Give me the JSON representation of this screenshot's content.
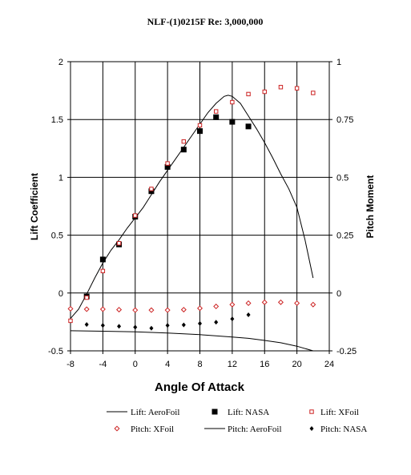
{
  "chart_data": {
    "type": "line",
    "title": "NLF-(1)0215F Re: 3,000,000",
    "xlabel": "Angle Of Attack",
    "ylabel_left": "Lift Coefficient",
    "ylabel_right": "Pitch Moment",
    "xlim": [
      -8,
      24
    ],
    "ylim_left": [
      -0.5,
      2
    ],
    "ylim_right": [
      -0.25,
      1
    ],
    "grid": true,
    "legend_position": "bottom",
    "x_ticks": [
      "-8",
      "-4",
      "0",
      "4",
      "8",
      "12",
      "16",
      "20",
      "24"
    ],
    "y_left_ticks": [
      "-0.5",
      "0",
      "0.5",
      "1",
      "1.5",
      "2"
    ],
    "y_right_ticks": [
      "-0.25",
      "0",
      "0.25",
      "0.5",
      "0.75",
      "1"
    ],
    "series": [
      {
        "name": "Lift: AeroFoil",
        "axis": "left",
        "style": "line",
        "color": "#000000",
        "x": [
          -8,
          -7,
          -6,
          -5,
          -4,
          -3,
          -2,
          -1,
          0,
          1,
          2,
          3,
          4,
          5,
          6,
          7,
          8,
          9,
          10,
          11,
          11.5,
          12,
          13,
          14,
          15,
          16,
          17,
          18,
          19,
          20,
          21,
          22
        ],
        "y": [
          -0.22,
          -0.14,
          -0.01,
          0.13,
          0.26,
          0.37,
          0.46,
          0.56,
          0.65,
          0.74,
          0.85,
          0.96,
          1.06,
          1.16,
          1.26,
          1.36,
          1.46,
          1.56,
          1.64,
          1.7,
          1.71,
          1.7,
          1.64,
          1.53,
          1.42,
          1.3,
          1.17,
          1.03,
          0.9,
          0.74,
          0.46,
          0.13
        ]
      },
      {
        "name": "Lift: NASA",
        "axis": "left",
        "style": "marker",
        "marker": "filled-square",
        "color": "#000000",
        "x": [
          -6,
          -4,
          -2,
          0,
          2,
          4,
          6,
          8,
          10,
          12,
          14
        ],
        "y": [
          -0.03,
          0.29,
          0.42,
          0.66,
          0.88,
          1.09,
          1.24,
          1.4,
          1.52,
          1.48,
          1.44
        ]
      },
      {
        "name": "Lift: XFoil",
        "axis": "left",
        "style": "marker",
        "marker": "open-square",
        "color": "#cc2222",
        "x": [
          -8,
          -6,
          -4,
          -2,
          0,
          2,
          4,
          6,
          8,
          10,
          12,
          14,
          16,
          18,
          20,
          22
        ],
        "y": [
          -0.24,
          -0.04,
          0.19,
          0.43,
          0.67,
          0.9,
          1.12,
          1.31,
          1.45,
          1.57,
          1.65,
          1.72,
          1.74,
          1.78,
          1.77,
          1.73
        ]
      },
      {
        "name": "Pitch: XFoil",
        "axis": "right",
        "style": "marker",
        "marker": "open-diamond",
        "color": "#cc2222",
        "x": [
          -8,
          -6,
          -4,
          -2,
          0,
          2,
          4,
          6,
          8,
          10,
          12,
          14,
          16,
          18,
          20,
          22
        ],
        "y": [
          -0.068,
          -0.07,
          -0.07,
          -0.072,
          -0.074,
          -0.074,
          -0.074,
          -0.072,
          -0.066,
          -0.058,
          -0.05,
          -0.044,
          -0.04,
          -0.04,
          -0.044,
          -0.05
        ]
      },
      {
        "name": "Pitch: AeroFoil",
        "axis": "right",
        "style": "line",
        "color": "#000000",
        "x": [
          -8,
          -4,
          0,
          4,
          8,
          12,
          14,
          16,
          18,
          20,
          22
        ],
        "y": [
          -0.163,
          -0.165,
          -0.168,
          -0.173,
          -0.18,
          -0.19,
          -0.196,
          -0.205,
          -0.215,
          -0.23,
          -0.25
        ]
      },
      {
        "name": "Pitch: NASA",
        "axis": "right",
        "style": "marker",
        "marker": "filled-diamond",
        "color": "#000000",
        "x": [
          -6,
          -4,
          -2,
          0,
          2,
          4,
          6,
          8,
          10,
          12,
          14
        ],
        "y": [
          -0.136,
          -0.14,
          -0.144,
          -0.148,
          -0.152,
          -0.14,
          -0.138,
          -0.132,
          -0.126,
          -0.112,
          -0.094
        ]
      }
    ]
  }
}
